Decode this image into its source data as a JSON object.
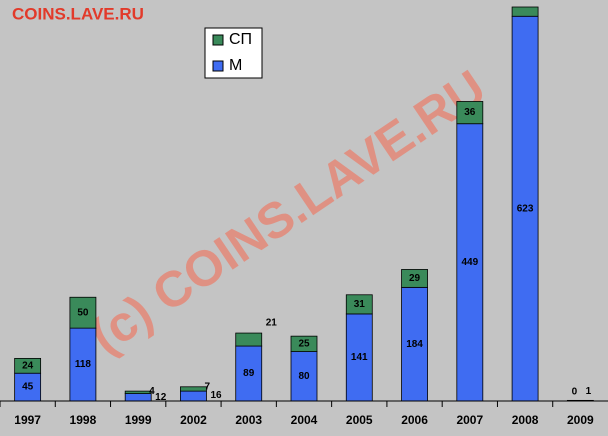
{
  "chart_data": {
    "type": "stacked-bar",
    "site_label": "COINS.LAVE.RU",
    "watermark": "(c) COINS.LAVE.RU",
    "categories": [
      "1997",
      "1998",
      "1999",
      "2002",
      "2003",
      "2004",
      "2005",
      "2006",
      "2007",
      "2008",
      "2009"
    ],
    "series": [
      {
        "name": "М",
        "color": "#3f6cf2",
        "values": [
          45,
          118,
          12,
          16,
          89,
          80,
          141,
          184,
          449,
          623,
          0
        ]
      },
      {
        "name": "СП",
        "color": "#3a8a5a",
        "values": [
          24,
          50,
          4,
          7,
          21,
          25,
          31,
          29,
          36,
          15,
          1
        ]
      }
    ],
    "legend": "top-left"
  }
}
